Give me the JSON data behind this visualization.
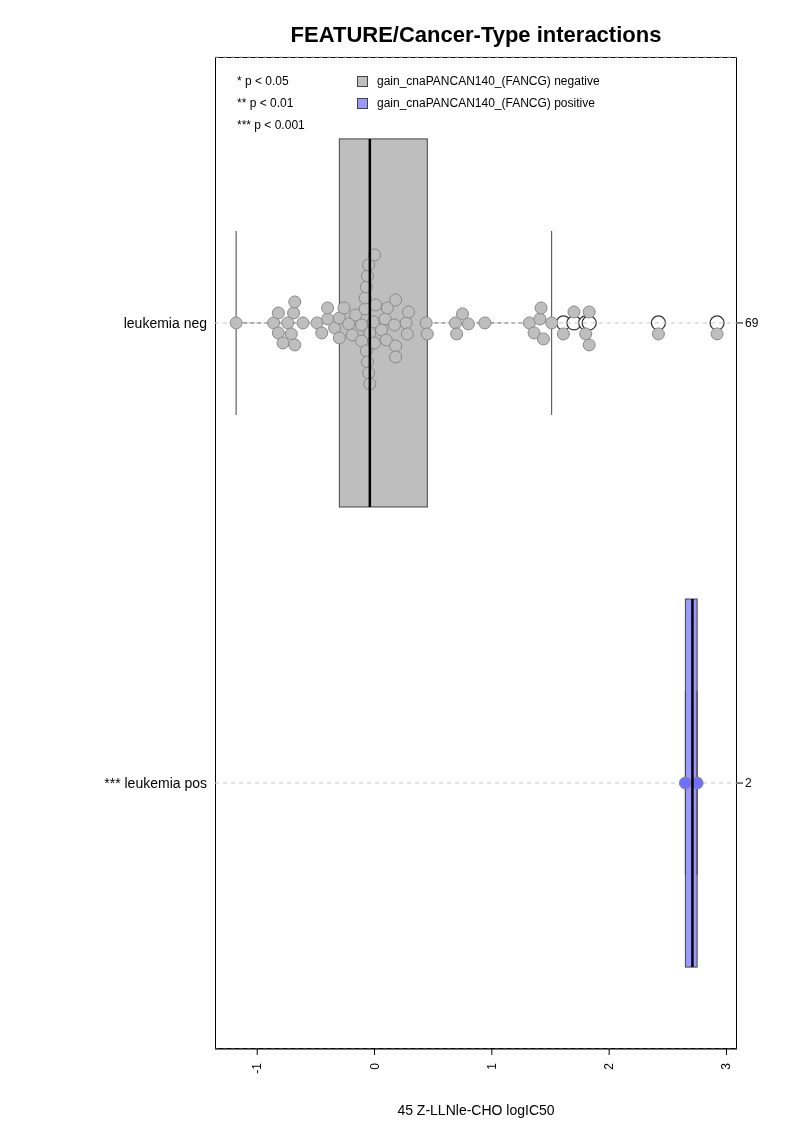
{
  "chart_data": {
    "type": "box",
    "title": "FEATURE/Cancer-Type interactions",
    "xlabel": "45 Z-LLNle-CHO logIC50",
    "orientation": "horizontal",
    "categories": [
      "leukemia neg",
      "*** leukemia pos"
    ],
    "y2_categories": [
      "69",
      "2"
    ],
    "xlim": [
      -1.36,
      3.09
    ],
    "xticks": [
      -1,
      0,
      1,
      2,
      3
    ],
    "grid": "y",
    "legend": "top left",
    "annotations": [
      "* p < 0.05",
      "** p < 0.01",
      "*** p < 0.001"
    ],
    "series": [
      {
        "type": "box",
        "name": "gain_cnaPANCAN140_(FANCG) negative",
        "color": "#bebebe",
        "boxes": [
          {
            "low": -1.18,
            "q1": -0.3,
            "median": -0.04,
            "q3": 0.45,
            "high": 1.51,
            "outliers": [
              1.61,
              1.7,
              1.8,
              1.83,
              2.42,
              2.92
            ]
          },
          null
        ]
      },
      {
        "type": "box",
        "name": "gain_cnaPANCAN140_(FANCG) positive",
        "color": "#9999ff",
        "boxes": [
          null,
          {
            "low": 2.65,
            "q1": 2.65,
            "median": 2.71,
            "q3": 2.75,
            "high": 2.75
          }
        ]
      },
      {
        "type": "scatter",
        "color": "#bebebe",
        "x": [
          "leukemia neg",
          "leukemia neg",
          "leukemia neg",
          "leukemia neg",
          "leukemia neg",
          "leukemia neg",
          "leukemia neg",
          "leukemia neg",
          "leukemia neg",
          "leukemia neg",
          "leukemia neg",
          "leukemia neg",
          "leukemia neg",
          "leukemia neg",
          "leukemia neg",
          "leukemia neg",
          "leukemia neg",
          "leukemia neg",
          "leukemia neg",
          "leukemia neg",
          "leukemia neg",
          "leukemia neg",
          "leukemia neg",
          "leukemia neg",
          "leukemia neg",
          "leukemia neg",
          "leukemia neg",
          "leukemia neg",
          "leukemia neg",
          "leukemia neg",
          "leukemia neg",
          "leukemia neg",
          "leukemia neg",
          "leukemia neg",
          "leukemia neg",
          "leukemia neg",
          "leukemia neg",
          "leukemia neg",
          "leukemia neg",
          "leukemia neg",
          "leukemia neg",
          "leukemia neg",
          "leukemia neg",
          "leukemia neg",
          "leukemia neg",
          "leukemia neg",
          "leukemia neg",
          "leukemia neg",
          "leukemia neg",
          "leukemia neg",
          "leukemia neg",
          "leukemia neg",
          "leukemia neg",
          "leukemia neg",
          "leukemia neg",
          "leukemia neg",
          "leukemia neg",
          "leukemia neg",
          "leukemia neg",
          "leukemia neg",
          "leukemia neg",
          "leukemia neg",
          "leukemia neg",
          "leukemia neg",
          "leukemia neg",
          "leukemia neg",
          "leukemia neg",
          "leukemia neg",
          "leukemia neg"
        ],
        "values": [
          -1.18,
          -0.86,
          -0.82,
          -0.82,
          -0.78,
          -0.74,
          -0.71,
          -0.69,
          -0.68,
          -0.68,
          -0.61,
          -0.49,
          -0.45,
          -0.4,
          -0.4,
          -0.34,
          -0.3,
          -0.3,
          -0.26,
          -0.22,
          -0.19,
          -0.16,
          -0.11,
          -0.11,
          -0.08,
          -0.08,
          -0.07,
          -0.07,
          -0.06,
          -0.06,
          -0.05,
          -0.05,
          -0.04,
          -0.04,
          -0.01,
          0.0,
          0.0,
          0.01,
          0.06,
          0.09,
          0.1,
          0.11,
          0.17,
          0.18,
          0.18,
          0.18,
          0.27,
          0.28,
          0.29,
          0.44,
          0.45,
          0.69,
          0.7,
          0.75,
          0.8,
          0.94,
          1.32,
          1.36,
          1.41,
          1.42,
          1.44,
          1.51,
          1.61,
          1.7,
          1.8,
          1.83,
          1.83,
          2.42,
          2.92
        ]
      },
      {
        "type": "scatter",
        "color": "#7070ff",
        "x": [
          "*** leukemia pos",
          "*** leukemia pos"
        ],
        "values": [
          2.65,
          2.75
        ]
      }
    ]
  }
}
